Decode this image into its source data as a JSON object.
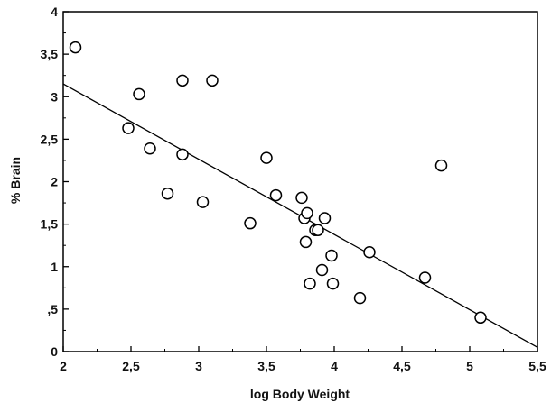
{
  "chart_data": {
    "type": "scatter",
    "title": "",
    "xlabel": "log Body Weight",
    "ylabel": "% Brain",
    "xlim": [
      2,
      5.5
    ],
    "ylim": [
      0,
      4
    ],
    "x_ticks": [
      "2",
      "2,5",
      "3",
      "3,5",
      "4",
      "4,5",
      "5",
      "5,5"
    ],
    "y_ticks": [
      "0",
      ",5",
      "1",
      "1,5",
      "2",
      "2,5",
      "3",
      "3,5",
      "4"
    ],
    "grid": false,
    "legend": "none",
    "marker": "open-circle",
    "color": "#000000",
    "series": [
      {
        "points": [
          [
            2.09,
            3.58
          ],
          [
            2.48,
            2.63
          ],
          [
            2.56,
            3.03
          ],
          [
            2.64,
            2.39
          ],
          [
            2.77,
            1.86
          ],
          [
            2.88,
            3.19
          ],
          [
            2.88,
            2.32
          ],
          [
            3.03,
            1.76
          ],
          [
            3.1,
            3.19
          ],
          [
            3.38,
            1.51
          ],
          [
            3.5,
            2.28
          ],
          [
            3.57,
            1.84
          ],
          [
            3.76,
            1.81
          ],
          [
            3.78,
            1.57
          ],
          [
            3.79,
            1.29
          ],
          [
            3.8,
            1.63
          ],
          [
            3.82,
            0.8
          ],
          [
            3.86,
            1.43
          ],
          [
            3.88,
            1.43
          ],
          [
            3.91,
            0.96
          ],
          [
            3.93,
            1.57
          ],
          [
            3.98,
            1.13
          ],
          [
            3.99,
            0.8
          ],
          [
            4.19,
            0.63
          ],
          [
            4.26,
            1.17
          ],
          [
            4.67,
            0.87
          ],
          [
            4.79,
            2.19
          ],
          [
            5.08,
            0.4
          ]
        ]
      }
    ],
    "trendline": {
      "x": [
        2,
        5.5
      ],
      "y": [
        3.15,
        0.05
      ]
    }
  }
}
